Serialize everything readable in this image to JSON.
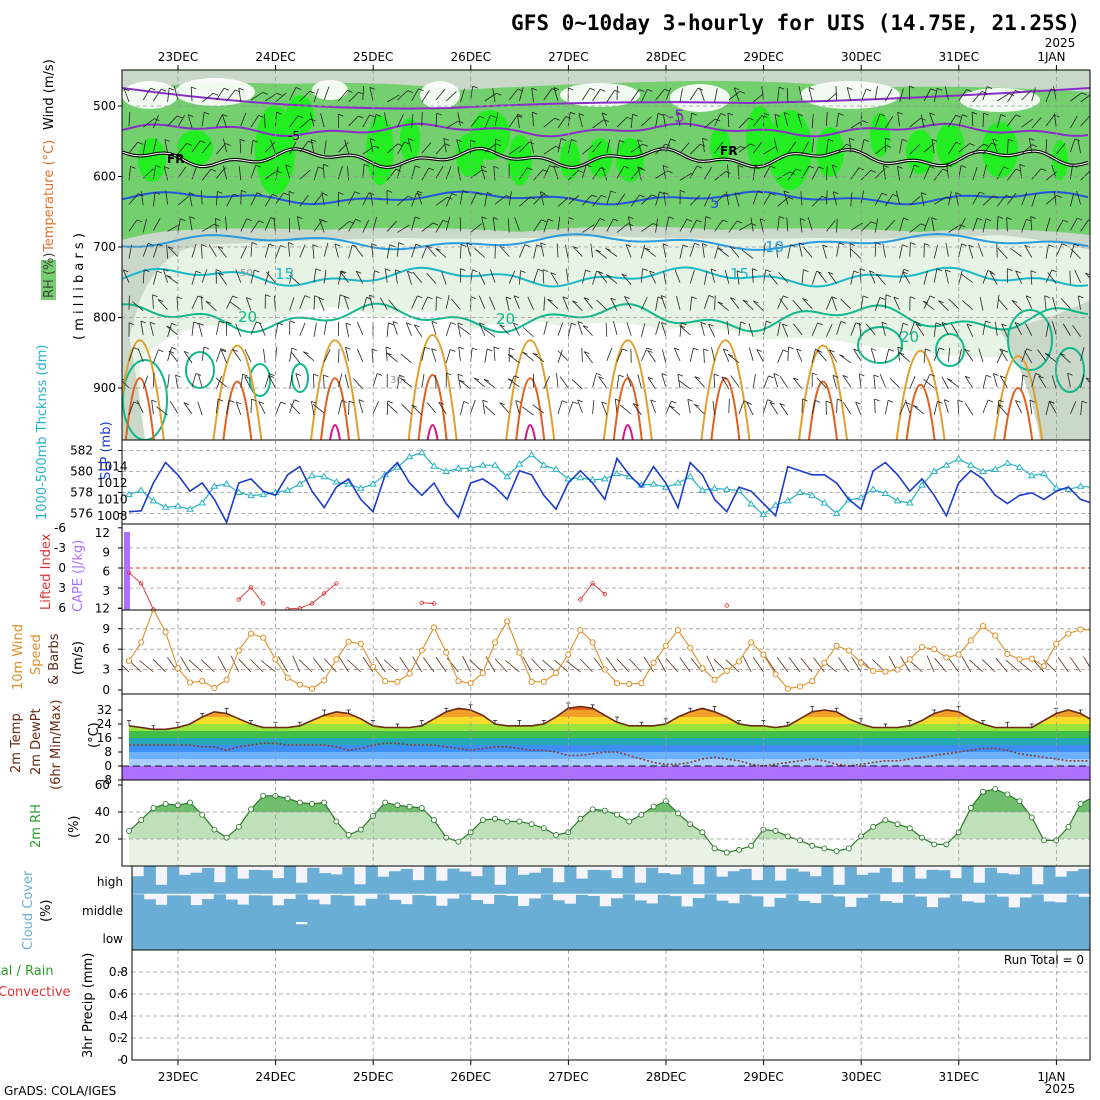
{
  "header": {
    "title": "GFS 0~10day 3-hourly for UIS (14.75E, 21.25S)",
    "year_top": "2025",
    "year_bottom": "2025",
    "credit": "GrADS: COLA/IGES",
    "run_total": "Run Total = 0"
  },
  "dates": [
    "23DEC",
    "24DEC",
    "25DEC",
    "26DEC",
    "27DEC",
    "28DEC",
    "29DEC",
    "30DEC",
    "31DEC",
    "1JAN"
  ],
  "colors": {
    "rh_light": "#e7f3e5",
    "rh_grey": "#c9d8c9",
    "rh_mid": "#74cf6e",
    "rh_bright": "#22ee22",
    "temp_purple": "#8a2ec8",
    "temp_blue": "#2454dd",
    "temp_sky": "#2a9be0",
    "temp_cyan": "#1ab8c8",
    "temp_teal": "#10b88c",
    "temp_orange": "#e0a030",
    "temp_dorange": "#e06020",
    "temp_magenta": "#dd1188",
    "slp": "#1c3ccc",
    "thickness": "#27b3c6",
    "cape": "#b070ff",
    "lifted": "#dd3333",
    "wind10": "#e0902a",
    "barb": "#553322",
    "temp2m": "#6b2a12",
    "dewpt": "#8b3a2a",
    "rh2m_line": "#2a7a2a",
    "rh2m_fill": "#6fbf6f",
    "cloud": "#6aaed6",
    "cloud_bg": "#f4f4fa"
  },
  "panels": {
    "upper": {
      "ylabel_wind": "Wind (m/s)",
      "ylabel_temp": "Temperature (°C)",
      "ylabel_rh": "RH (%)",
      "ylabel_mb": "( m i l l i b a r s )",
      "y_ticks": [
        "500",
        "600",
        "700",
        "800",
        "900"
      ],
      "contour_labels": {
        "minus5_a": "-5",
        "minus5_b": "-5",
        "fr_a": "FR",
        "fr_b": "FR",
        "plus5": "5",
        "ten": "10",
        "fifteen_a": "15",
        "fifteen_b": "15",
        "twenty_a": "20",
        "twenty_b": "20",
        "twenty_c": "20",
        "rh30": "30",
        "rh50": "50"
      }
    },
    "slp": {
      "ylabel_thk": "1000-500mb Thcknss (dm)",
      "ylabel_slp": "SLP (mb)",
      "thk_ticks": [
        "582",
        "580",
        "578",
        "576"
      ],
      "slp_ticks": [
        "1014",
        "1012",
        "1010",
        "1008"
      ]
    },
    "cape": {
      "ylabel_li": "Lifted Index",
      "ylabel_cape": "CAPE (J/kg)",
      "li_ticks": [
        "-6",
        "-3",
        "0",
        "3",
        "6"
      ],
      "cape_ticks": [
        "12",
        "9",
        "6",
        "3"
      ]
    },
    "wind": {
      "ylabel_a": "10m Wind",
      "ylabel_b": "Speed",
      "ylabel_c": "& Barbs",
      "ylabel_d": "(m/s)",
      "y_ticks": [
        "12",
        "9",
        "6",
        "3",
        "0"
      ]
    },
    "temp": {
      "ylabel_a": "2m Temp",
      "ylabel_b": "2m DewPt",
      "ylabel_c": "(6hr Min/Max)",
      "ylabel_d": "(°C)",
      "y_ticks": [
        "32",
        "24",
        "16",
        "8",
        "0",
        "-8"
      ]
    },
    "rh": {
      "ylabel": "2m RH",
      "unit": "(%)",
      "y_ticks": [
        "60",
        "40",
        "20"
      ]
    },
    "cloud": {
      "ylabel": "Cloud Cover",
      "unit": "(%)",
      "levels": [
        "high",
        "middle",
        "low"
      ]
    },
    "precip": {
      "ylabel_a": "Total / Rain",
      "ylabel_b": "Convective",
      "ylabel_c": "3hr Precip (mm)",
      "y_ticks": [
        "0.8",
        "0.6",
        "0.4",
        "0.2",
        "0"
      ]
    }
  },
  "chart_data": [
    {
      "type": "line",
      "title": "SLP (mb) and 1000-500mb Thickness (dm)",
      "x": "3-hourly steps from 22DEC 12Z to 1JAN 06Z",
      "series": [
        {
          "name": "SLP (mb)",
          "axis": "right",
          "values": [
            1008.5,
            1008.6,
            1012.0,
            1014.5,
            1013.0,
            1011.0,
            1012.0,
            1010.0,
            1007.2,
            1012.0,
            1012.5,
            1011.0,
            1010.5,
            1013.0,
            1014.0,
            1011.0,
            1009.0,
            1011.5,
            1012.5,
            1010.0,
            1008.5,
            1013.0,
            1014.5,
            1012.0,
            1010.5,
            1012.0,
            1009.5,
            1007.8,
            1012.0,
            1012.5,
            1011.5,
            1010.0,
            1013.5,
            1013.0,
            1010.5,
            1008.8,
            1012.0,
            1013.5,
            1012.0,
            1010.0,
            1015.0,
            1013.0,
            1011.5,
            1014.0,
            1012.0,
            1009.0,
            1014.5,
            1013.0,
            1010.0,
            1008.5,
            1011.5,
            1011.0,
            1009.5,
            1008.0,
            1014.0,
            1013.5,
            1013.0,
            1013.0,
            1012.0,
            1010.0,
            1008.8,
            1013.5,
            1014.5,
            1013.0,
            1011.0,
            1012.5,
            1010.5,
            1008.0,
            1012.0,
            1013.5,
            1012.5,
            1010.5,
            1009.5,
            1010.5,
            1010.8,
            1010.0,
            1011.0,
            1011.5,
            1010.0,
            1009.5,
            1012.0
          ]
        },
        {
          "name": "1000-500mb Thickness (dm)",
          "axis": "left",
          "values": [
            577.8,
            578.2,
            577.2,
            576.6,
            576.7,
            576.4,
            577.0,
            578.6,
            578.8,
            578.0,
            577.7,
            577.8,
            578.0,
            578.2,
            578.8,
            579.6,
            579.5,
            579.0,
            578.8,
            578.4,
            578.8,
            579.7,
            580.4,
            581.4,
            581.8,
            580.5,
            580.0,
            580.3,
            580.3,
            580.6,
            580.6,
            579.5,
            580.7,
            581.6,
            580.6,
            580.2,
            579.3,
            579.4,
            579.2,
            579.3,
            579.8,
            579.5,
            578.7,
            578.8,
            578.5,
            578.9,
            579.5,
            578.2,
            578.4,
            578.3,
            578.2,
            576.9,
            575.9,
            576.8,
            577.2,
            578.0,
            577.7,
            577.0,
            576.0,
            577.3,
            577.5,
            578.3,
            577.9,
            577.2,
            577.0,
            578.7,
            580.0,
            580.6,
            581.2,
            580.6,
            580.0,
            580.2,
            580.8,
            580.4,
            579.6,
            579.8,
            578.4,
            578.3,
            578.6,
            578.5,
            578.8
          ]
        }
      ],
      "ylim_left": [
        575,
        583
      ],
      "ylim_right": [
        1007,
        1016
      ]
    },
    {
      "type": "line",
      "title": "10m Wind Speed (m/s)",
      "x": "3-hourly steps from 22DEC 12Z to 1JAN 06Z",
      "values": [
        4.3,
        7.0,
        11.9,
        8.5,
        3.2,
        1.1,
        1.3,
        0.3,
        1.5,
        5.8,
        8.3,
        7.7,
        4.5,
        1.8,
        0.8,
        0.2,
        1.4,
        4.5,
        7.1,
        6.8,
        3.4,
        1.3,
        1.2,
        2.4,
        5.8,
        9.2,
        5.5,
        1.3,
        1.0,
        2.5,
        7.0,
        10.1,
        5.5,
        1.2,
        1.2,
        2.5,
        5.2,
        8.8,
        7.0,
        3.0,
        1.0,
        0.9,
        1.0,
        4.0,
        6.5,
        8.8,
        6.2,
        3.2,
        1.5,
        2.8,
        4.2,
        7.0,
        5.2,
        2.3,
        0.2,
        0.5,
        1.3,
        4.0,
        6.5,
        5.8,
        4.0,
        2.8,
        2.7,
        3.0,
        4.5,
        6.3,
        6.0,
        4.8,
        5.2,
        7.3,
        9.4,
        8.0,
        5.3,
        4.5,
        4.6,
        3.5,
        6.8,
        8.3,
        8.9,
        8.8,
        5.8,
        3.5,
        2.8,
        3.2,
        3.8
      ],
      "ylim": [
        0,
        12
      ],
      "xlabel": "",
      "ylabel": "(m/s)"
    },
    {
      "type": "line",
      "title": "Lifted Index",
      "x": "3-hourly steps from 22DEC 12Z",
      "values": [
        -0.7,
        -2.3,
        -6.2,
        null,
        null,
        null,
        null,
        null,
        null,
        -4.7,
        -2.9,
        -5.3,
        null,
        -6.1,
        -6.0,
        -5.3,
        -3.8,
        -2.3,
        null,
        null,
        null,
        null,
        null,
        null,
        -5.2,
        -5.3,
        null,
        null,
        null,
        null,
        null,
        null,
        null,
        null,
        null,
        null,
        null,
        -4.7,
        -2.3,
        -3.9,
        null,
        null,
        null,
        null,
        null,
        null,
        null,
        null,
        null,
        -5.6
      ],
      "ylim": [
        6,
        -6
      ]
    },
    {
      "type": "bar",
      "title": "CAPE (J/kg)",
      "categories": [
        "22DEC 12Z"
      ],
      "values": [
        12.2
      ],
      "ylim": [
        0,
        12
      ]
    },
    {
      "type": "area",
      "title": "2m Temp (°C)",
      "x": "3-hourly steps from 22DEC 12Z",
      "values": [
        23,
        22,
        21,
        21,
        22,
        24,
        28,
        31,
        30,
        27,
        24,
        22,
        22,
        22,
        23,
        26,
        29,
        31,
        30,
        27,
        23,
        22,
        22,
        22,
        23,
        27,
        31,
        33,
        32,
        29,
        24,
        23,
        23,
        23,
        24,
        28,
        33,
        34,
        33,
        29,
        25,
        23,
        23,
        23,
        24,
        28,
        31,
        33,
        31,
        28,
        24,
        23,
        23,
        22,
        23,
        27,
        31,
        32,
        31,
        27,
        24,
        22,
        22,
        22,
        23,
        26,
        30,
        32,
        31,
        27,
        24,
        22,
        22,
        22,
        22,
        26,
        30,
        32,
        30,
        26,
        23,
        21,
        21,
        21,
        21,
        22
      ],
      "ylim": [
        -8,
        36
      ]
    },
    {
      "type": "line",
      "title": "2m DewPt (°C)",
      "x": "3-hourly steps from 22DEC 12Z",
      "values": [
        12,
        12,
        12,
        12,
        12,
        12,
        11,
        11,
        9,
        11,
        12,
        13,
        13,
        12,
        12,
        12,
        12,
        11,
        9,
        10,
        12,
        13,
        13,
        12,
        12,
        12,
        11,
        10,
        9,
        10,
        11,
        11,
        10,
        9,
        9,
        8,
        6,
        6,
        7,
        8,
        8,
        6,
        4,
        2,
        1,
        1,
        2,
        4,
        5,
        4,
        3,
        1,
        0,
        1,
        2,
        3,
        4,
        3,
        1,
        0,
        1,
        2,
        3,
        3,
        4,
        5,
        6,
        7,
        8,
        9,
        10,
        10,
        9,
        7,
        6,
        5,
        4,
        3,
        3,
        3,
        3,
        4,
        5
      ],
      "ylim": [
        -8,
        36
      ]
    },
    {
      "type": "area",
      "title": "2m RH (%)",
      "x": "3-hourly steps from 22DEC 12Z",
      "values": [
        26,
        34,
        43,
        46,
        45,
        47,
        38,
        27,
        21,
        29,
        42,
        52,
        52,
        50,
        47,
        46,
        47,
        33,
        23,
        27,
        37,
        47,
        45,
        44,
        43,
        34,
        21,
        18,
        25,
        34,
        35,
        33,
        33,
        31,
        28,
        23,
        25,
        35,
        42,
        41,
        38,
        33,
        38,
        44,
        48,
        39,
        31,
        25,
        13,
        10,
        12,
        15,
        27,
        26,
        22,
        19,
        15,
        13,
        11,
        13,
        22,
        29,
        34,
        31,
        28,
        21,
        16,
        16,
        25,
        43,
        55,
        57,
        53,
        48,
        36,
        19,
        19,
        29,
        46,
        51,
        49,
        32,
        35,
        35
      ],
      "ylim": [
        0,
        60
      ]
    },
    {
      "type": "bar",
      "title": "3hr Precip (mm)",
      "categories": [],
      "values": [],
      "ylim": [
        0,
        1
      ]
    }
  ]
}
